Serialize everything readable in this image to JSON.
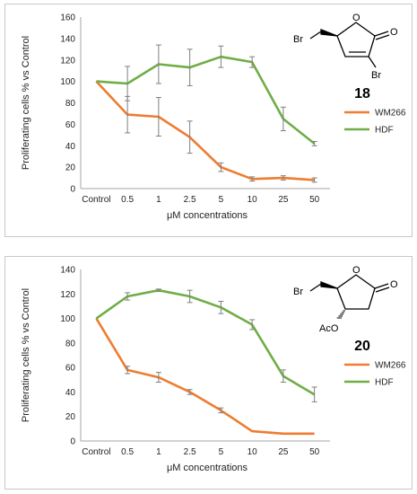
{
  "chart_data": [
    {
      "type": "line",
      "categories": [
        "Control",
        "0.5",
        "1",
        "2.5",
        "5",
        "10",
        "25",
        "50"
      ],
      "ylabel": "Proliferating cells % vs Control",
      "xlabel": "μM concentrations",
      "ylim": [
        0,
        160
      ],
      "yticks": [
        0,
        20,
        40,
        60,
        80,
        100,
        120,
        140,
        160
      ],
      "grid": false,
      "legend_position": "right",
      "compound": {
        "number": "18",
        "labels": [
          "Br",
          "Br",
          "O",
          "O"
        ]
      },
      "series": [
        {
          "name": "WM266",
          "color": "#ed7d31",
          "values": [
            100,
            69,
            67,
            48,
            20,
            9,
            10,
            8
          ],
          "errors": [
            0,
            17,
            18,
            15,
            4,
            2,
            2,
            2
          ]
        },
        {
          "name": "HDF",
          "color": "#70ad47",
          "values": [
            100,
            98,
            116,
            113,
            123,
            118,
            65,
            42
          ],
          "errors": [
            0,
            16,
            18,
            17,
            10,
            5,
            11,
            2
          ]
        }
      ]
    },
    {
      "type": "line",
      "categories": [
        "Control",
        "0.5",
        "1",
        "2.5",
        "5",
        "10",
        "25",
        "50"
      ],
      "ylabel": "Proliferating cells % vs Control",
      "xlabel": "μM concentrations",
      "ylim": [
        0,
        140
      ],
      "yticks": [
        0,
        20,
        40,
        60,
        80,
        100,
        120,
        140
      ],
      "grid": false,
      "legend_position": "right",
      "compound": {
        "number": "20",
        "labels": [
          "Br",
          "AcO",
          "O",
          "O"
        ]
      },
      "series": [
        {
          "name": "WM266",
          "color": "#ed7d31",
          "values": [
            100,
            58,
            52,
            40,
            25,
            8,
            6,
            6
          ],
          "errors": [
            0,
            3,
            4,
            2,
            2,
            0,
            0,
            0
          ]
        },
        {
          "name": "HDF",
          "color": "#70ad47",
          "values": [
            100,
            118,
            123,
            118,
            109,
            95,
            53,
            38
          ],
          "errors": [
            0,
            3,
            1,
            5,
            5,
            4,
            5,
            6
          ]
        }
      ]
    }
  ]
}
